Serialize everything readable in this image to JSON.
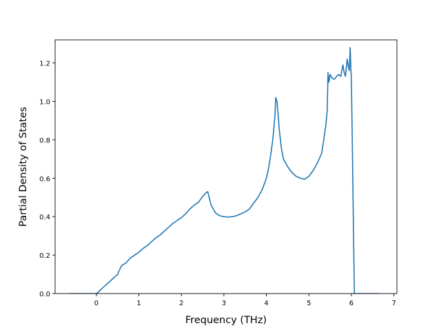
{
  "chart_data": {
    "type": "line",
    "title": "",
    "xlabel": "Frequency (THz)",
    "ylabel": "Partial Density of States",
    "xlim": [
      -0.97,
      7.07
    ],
    "ylim": [
      0.0,
      1.32
    ],
    "xticks": [
      0,
      1,
      2,
      3,
      4,
      5,
      6,
      7
    ],
    "yticks": [
      0.0,
      0.2,
      0.4,
      0.6,
      0.8,
      1.0,
      1.2
    ],
    "xtick_labels": [
      "0",
      "1",
      "2",
      "3",
      "4",
      "5",
      "6",
      "7"
    ],
    "ytick_labels": [
      "0.0",
      "0.2",
      "0.4",
      "0.6",
      "0.8",
      "1.0",
      "1.2"
    ],
    "grid": false,
    "line_color": "#1f77b4",
    "series": [
      {
        "x": [
          -0.63,
          0.0,
          0.05,
          0.1,
          0.2,
          0.3,
          0.4,
          0.5,
          0.58,
          0.62,
          0.64,
          0.7,
          0.8,
          0.9,
          1.0,
          1.1,
          1.2,
          1.3,
          1.4,
          1.5,
          1.6,
          1.7,
          1.8,
          1.9,
          2.0,
          2.1,
          2.2,
          2.3,
          2.4,
          2.5,
          2.58,
          2.62,
          2.7,
          2.8,
          2.9,
          3.0,
          3.1,
          3.2,
          3.3,
          3.4,
          3.5,
          3.6,
          3.7,
          3.8,
          3.9,
          4.0,
          4.05,
          4.1,
          4.15,
          4.2,
          4.22,
          4.25,
          4.28,
          4.3,
          4.35,
          4.4,
          4.5,
          4.6,
          4.7,
          4.8,
          4.9,
          5.0,
          5.1,
          5.2,
          5.3,
          5.35,
          5.4,
          5.43,
          5.45,
          5.47,
          5.5,
          5.55,
          5.6,
          5.65,
          5.7,
          5.75,
          5.8,
          5.83,
          5.86,
          5.9,
          5.93,
          5.95,
          5.97,
          6.0,
          6.02,
          6.05,
          6.07,
          6.1,
          6.3,
          6.65
        ],
        "y": [
          0.0,
          0.0,
          0.008,
          0.02,
          0.04,
          0.06,
          0.08,
          0.1,
          0.14,
          0.15,
          0.152,
          0.16,
          0.185,
          0.2,
          0.215,
          0.235,
          0.25,
          0.27,
          0.29,
          0.305,
          0.325,
          0.345,
          0.365,
          0.38,
          0.395,
          0.415,
          0.44,
          0.46,
          0.475,
          0.505,
          0.525,
          0.53,
          0.46,
          0.42,
          0.405,
          0.4,
          0.398,
          0.4,
          0.405,
          0.415,
          0.425,
          0.44,
          0.47,
          0.5,
          0.54,
          0.6,
          0.65,
          0.72,
          0.8,
          0.92,
          1.02,
          1.0,
          0.92,
          0.86,
          0.76,
          0.7,
          0.66,
          0.63,
          0.61,
          0.6,
          0.595,
          0.61,
          0.64,
          0.68,
          0.73,
          0.8,
          0.88,
          0.95,
          1.15,
          1.1,
          1.14,
          1.12,
          1.115,
          1.13,
          1.14,
          1.13,
          1.19,
          1.15,
          1.13,
          1.22,
          1.18,
          1.16,
          1.28,
          1.1,
          0.8,
          0.3,
          0.0,
          0.0,
          0.0,
          0.0
        ]
      }
    ]
  }
}
